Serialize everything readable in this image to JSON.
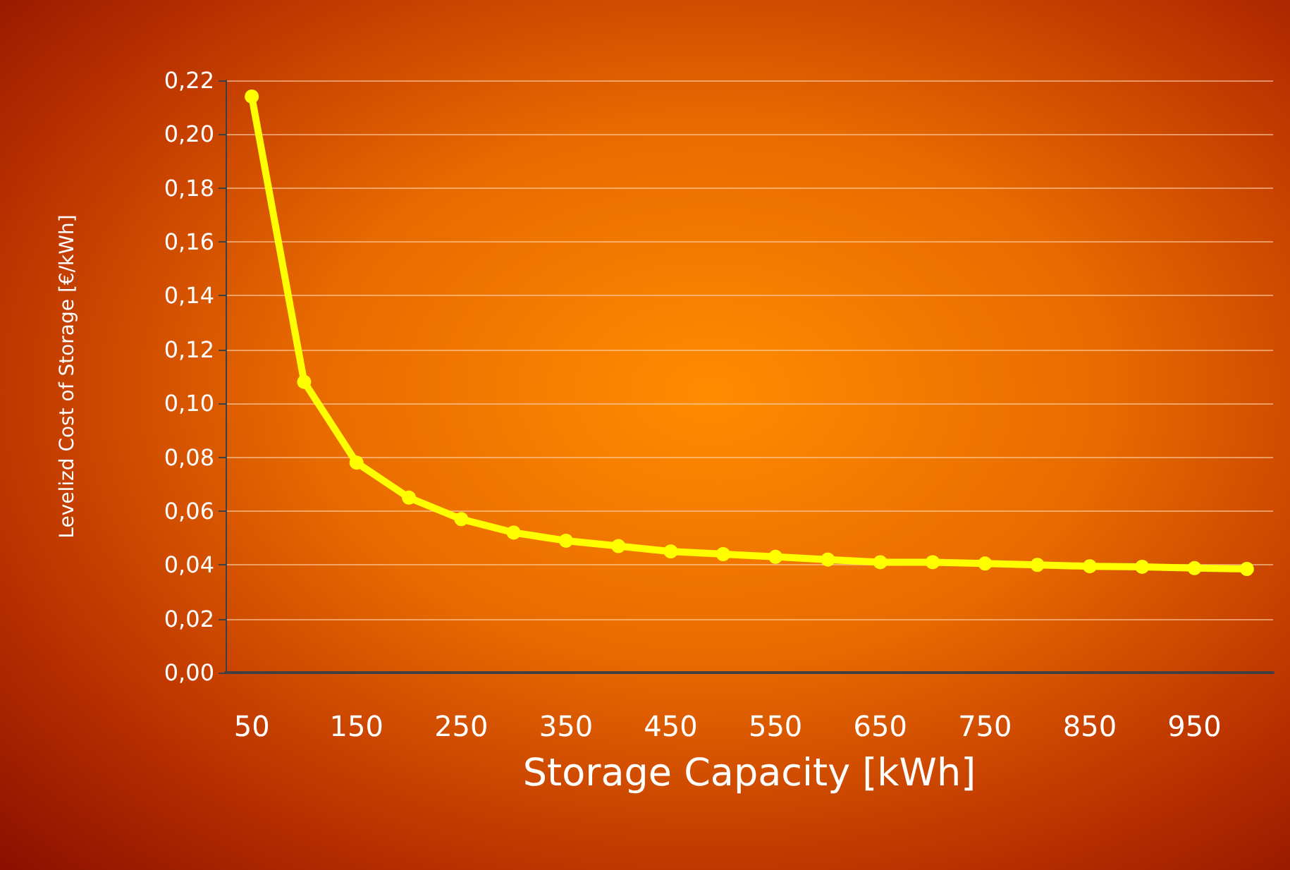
{
  "chart_data": {
    "type": "line",
    "xlabel": "Storage Capacity [kWh]",
    "ylabel": "Levelizd Cost of Storage [€/kWh]",
    "categories": [
      "50",
      null,
      "150",
      null,
      "250",
      null,
      "350",
      null,
      "450",
      null,
      "550",
      null,
      "650",
      null,
      "750",
      null,
      "850",
      null,
      "950",
      null
    ],
    "series": [
      {
        "color": "#ffff00",
        "values": [
          0.214,
          0.108,
          0.078,
          0.065,
          0.057,
          0.052,
          0.049,
          0.047,
          0.045,
          0.044,
          0.043,
          0.042,
          0.041,
          0.041,
          0.0405,
          0.04,
          0.0395,
          0.0393,
          0.0388,
          0.0385
        ]
      }
    ],
    "ylim": [
      0,
      0.22
    ],
    "yticks": [
      {
        "value": 0,
        "label": "0,00"
      },
      {
        "value": 0.02,
        "label": "0,02"
      },
      {
        "value": 0.04,
        "label": "0,04"
      },
      {
        "value": 0.06,
        "label": "0,06"
      },
      {
        "value": 0.08,
        "label": "0,08"
      },
      {
        "value": 0.1,
        "label": "0,10"
      },
      {
        "value": 0.12,
        "label": "0,12"
      },
      {
        "value": 0.14,
        "label": "0,14"
      },
      {
        "value": 0.16,
        "label": "0,16"
      },
      {
        "value": 0.18,
        "label": "0,18"
      },
      {
        "value": 0.2,
        "label": "0,20"
      },
      {
        "value": 0.22,
        "label": "0,22"
      }
    ],
    "grid": "y",
    "marker": "circle",
    "line_style": "solid"
  }
}
